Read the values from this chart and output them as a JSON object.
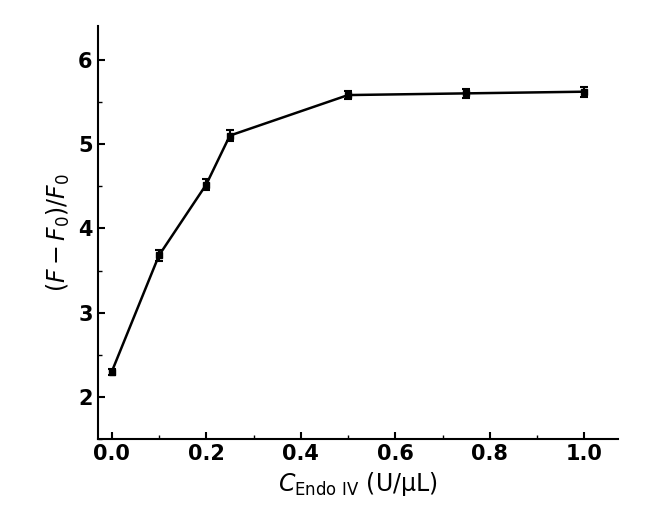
{
  "x": [
    0.0,
    0.1,
    0.2,
    0.25,
    0.5,
    0.75,
    1.0
  ],
  "y": [
    2.3,
    3.68,
    4.52,
    5.1,
    5.58,
    5.6,
    5.62
  ],
  "yerr": [
    0.04,
    0.06,
    0.06,
    0.07,
    0.05,
    0.05,
    0.06
  ],
  "line_color": "#000000",
  "marker": "s",
  "marker_size": 5,
  "marker_color": "#000000",
  "line_width": 1.8,
  "xlabel_text": "C",
  "xlabel_sub": "Endo IV",
  "xlabel_unit": " (U/μL)",
  "ylabel_text": "(F-F₀)/F₀",
  "xlim": [
    -0.03,
    1.07
  ],
  "ylim": [
    1.5,
    6.4
  ],
  "yticks": [
    2,
    3,
    4,
    5,
    6
  ],
  "xticks": [
    0.0,
    0.2,
    0.4,
    0.6,
    0.8,
    1.0
  ],
  "xlabel_fontsize": 17,
  "ylabel_fontsize": 17,
  "tick_fontsize": 15,
  "capsize": 3,
  "elinewidth": 1.5,
  "background_color": "#ffffff"
}
